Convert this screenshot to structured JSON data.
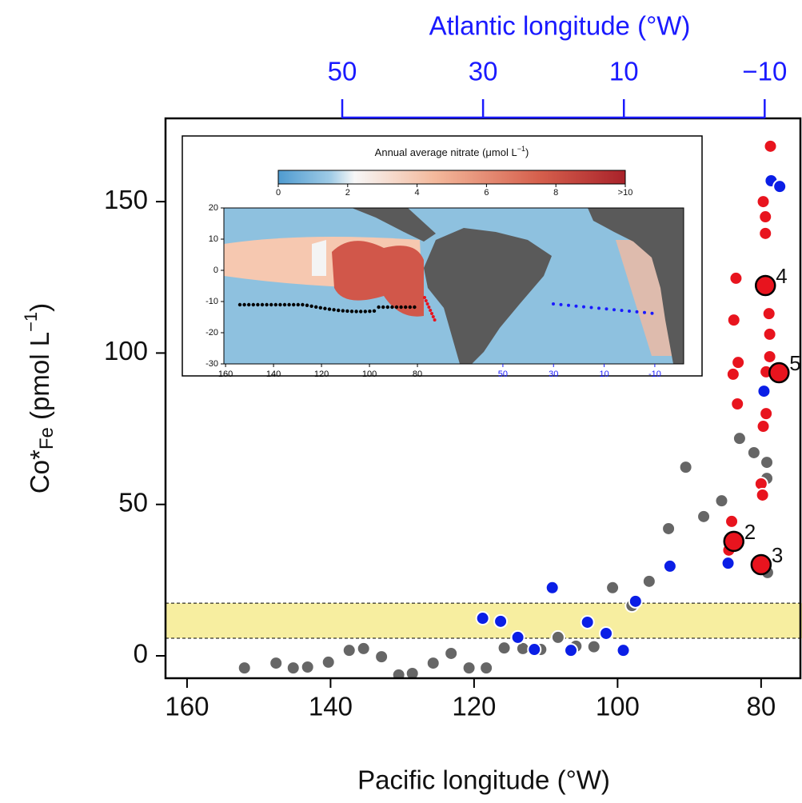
{
  "chart_data": {
    "type": "scatter",
    "x_label": "Pacific longitude (°W)",
    "y_label": {
      "main": "Co*",
      "sub": "Fe",
      "mid": " (pmol L",
      "sup": "−1",
      "end": ")"
    },
    "top_label": "Atlantic longitude (°W)",
    "xlim": [
      163,
      74.3
    ],
    "ylim": [
      -7.4,
      177.5
    ],
    "xticks": [
      160,
      140,
      120,
      100,
      80
    ],
    "yticks": [
      0,
      50,
      100,
      150
    ],
    "x2lim": [
      75.1,
      -15.3
    ],
    "x2ticks": [
      50,
      30,
      10,
      {
        "value": -10,
        "label": "−10"
      }
    ],
    "x2color": "#1a1aff",
    "band": [
      5.8,
      17.4
    ],
    "band_color": "#f7eea0",
    "series": [
      {
        "color": "#666666",
        "x": [
          152.0,
          147.6,
          145.2,
          143.2,
          140.3,
          137.4,
          135.4,
          132.9,
          130.5,
          128.6,
          125.7,
          123.2,
          120.7,
          118.3,
          115.8,
          113.2,
          110.7,
          108.3,
          105.8,
          103.3,
          100.7,
          98.0,
          95.6,
          92.9,
          90.5,
          88.0,
          85.5,
          83.0,
          81.0,
          79.2,
          79.2,
          79.1
        ],
        "values": [
          -4.0,
          -2.4,
          -4.0,
          -3.7,
          -2.1,
          1.8,
          2.4,
          -0.3,
          -6.3,
          -5.8,
          -2.4,
          0.8,
          -4.0,
          -4.0,
          2.6,
          2.4,
          2.1,
          6.1,
          3.2,
          3.0,
          22.5,
          16.6,
          24.6,
          42.0,
          62.3,
          46.0,
          51.2,
          71.8,
          67.1,
          63.9,
          58.6,
          27.5
        ]
      },
      {
        "color": "#0a1ee6",
        "x": [
          118.8,
          116.3,
          113.9,
          111.6,
          109.1,
          106.5,
          104.2,
          101.6,
          99.2,
          97.5,
          92.7,
          84.6,
          79.6,
          78.6,
          77.4
        ],
        "values": [
          12.4,
          11.4,
          6.1,
          2.1,
          22.5,
          1.8,
          11.1,
          7.4,
          1.8,
          18.0,
          29.6,
          30.6,
          87.4,
          156.9,
          155.0
        ]
      },
      {
        "color": "#e8141e",
        "x": [
          78.7,
          79.7,
          79.4,
          79.4,
          83.5,
          83.8,
          83.2,
          83.9,
          83.3,
          78.9,
          78.8,
          78.8,
          79.3,
          79.3,
          79.7,
          80.0,
          79.8,
          84.1,
          84.5
        ],
        "values": [
          168.3,
          150.0,
          145.0,
          139.5,
          124.7,
          110.9,
          96.9,
          93.0,
          83.2,
          113.0,
          106.2,
          98.8,
          93.8,
          80.0,
          75.8,
          56.8,
          53.1,
          44.4,
          34.9
        ]
      },
      {
        "color": "#e8141e",
        "outline": "#000000",
        "x": [
          79.4,
          77.5,
          83.8,
          80.0
        ],
        "values": [
          122.3,
          93.5,
          37.8,
          30.1
        ],
        "labels": [
          "4",
          "5",
          "2",
          "3"
        ]
      }
    ],
    "inset": {
      "title": {
        "main": "Annual average nitrate (μmol L",
        "sup": "−1",
        "end": ")"
      },
      "clim": [
        0,
        10
      ],
      "cticks": [
        0,
        2,
        4,
        6,
        8,
        {
          "value": 10,
          "label": ">10"
        }
      ],
      "ylim": [
        20,
        -30
      ],
      "yticks": [
        20,
        10,
        0,
        -10,
        -20,
        -30
      ],
      "xlim": [
        160.7,
        -31
      ],
      "xticks": [
        160,
        140,
        120,
        100,
        80
      ],
      "x2lim": [
        160.2,
        -21.4
      ],
      "x2ticks": [
        50,
        30,
        10,
        -10
      ]
    }
  }
}
